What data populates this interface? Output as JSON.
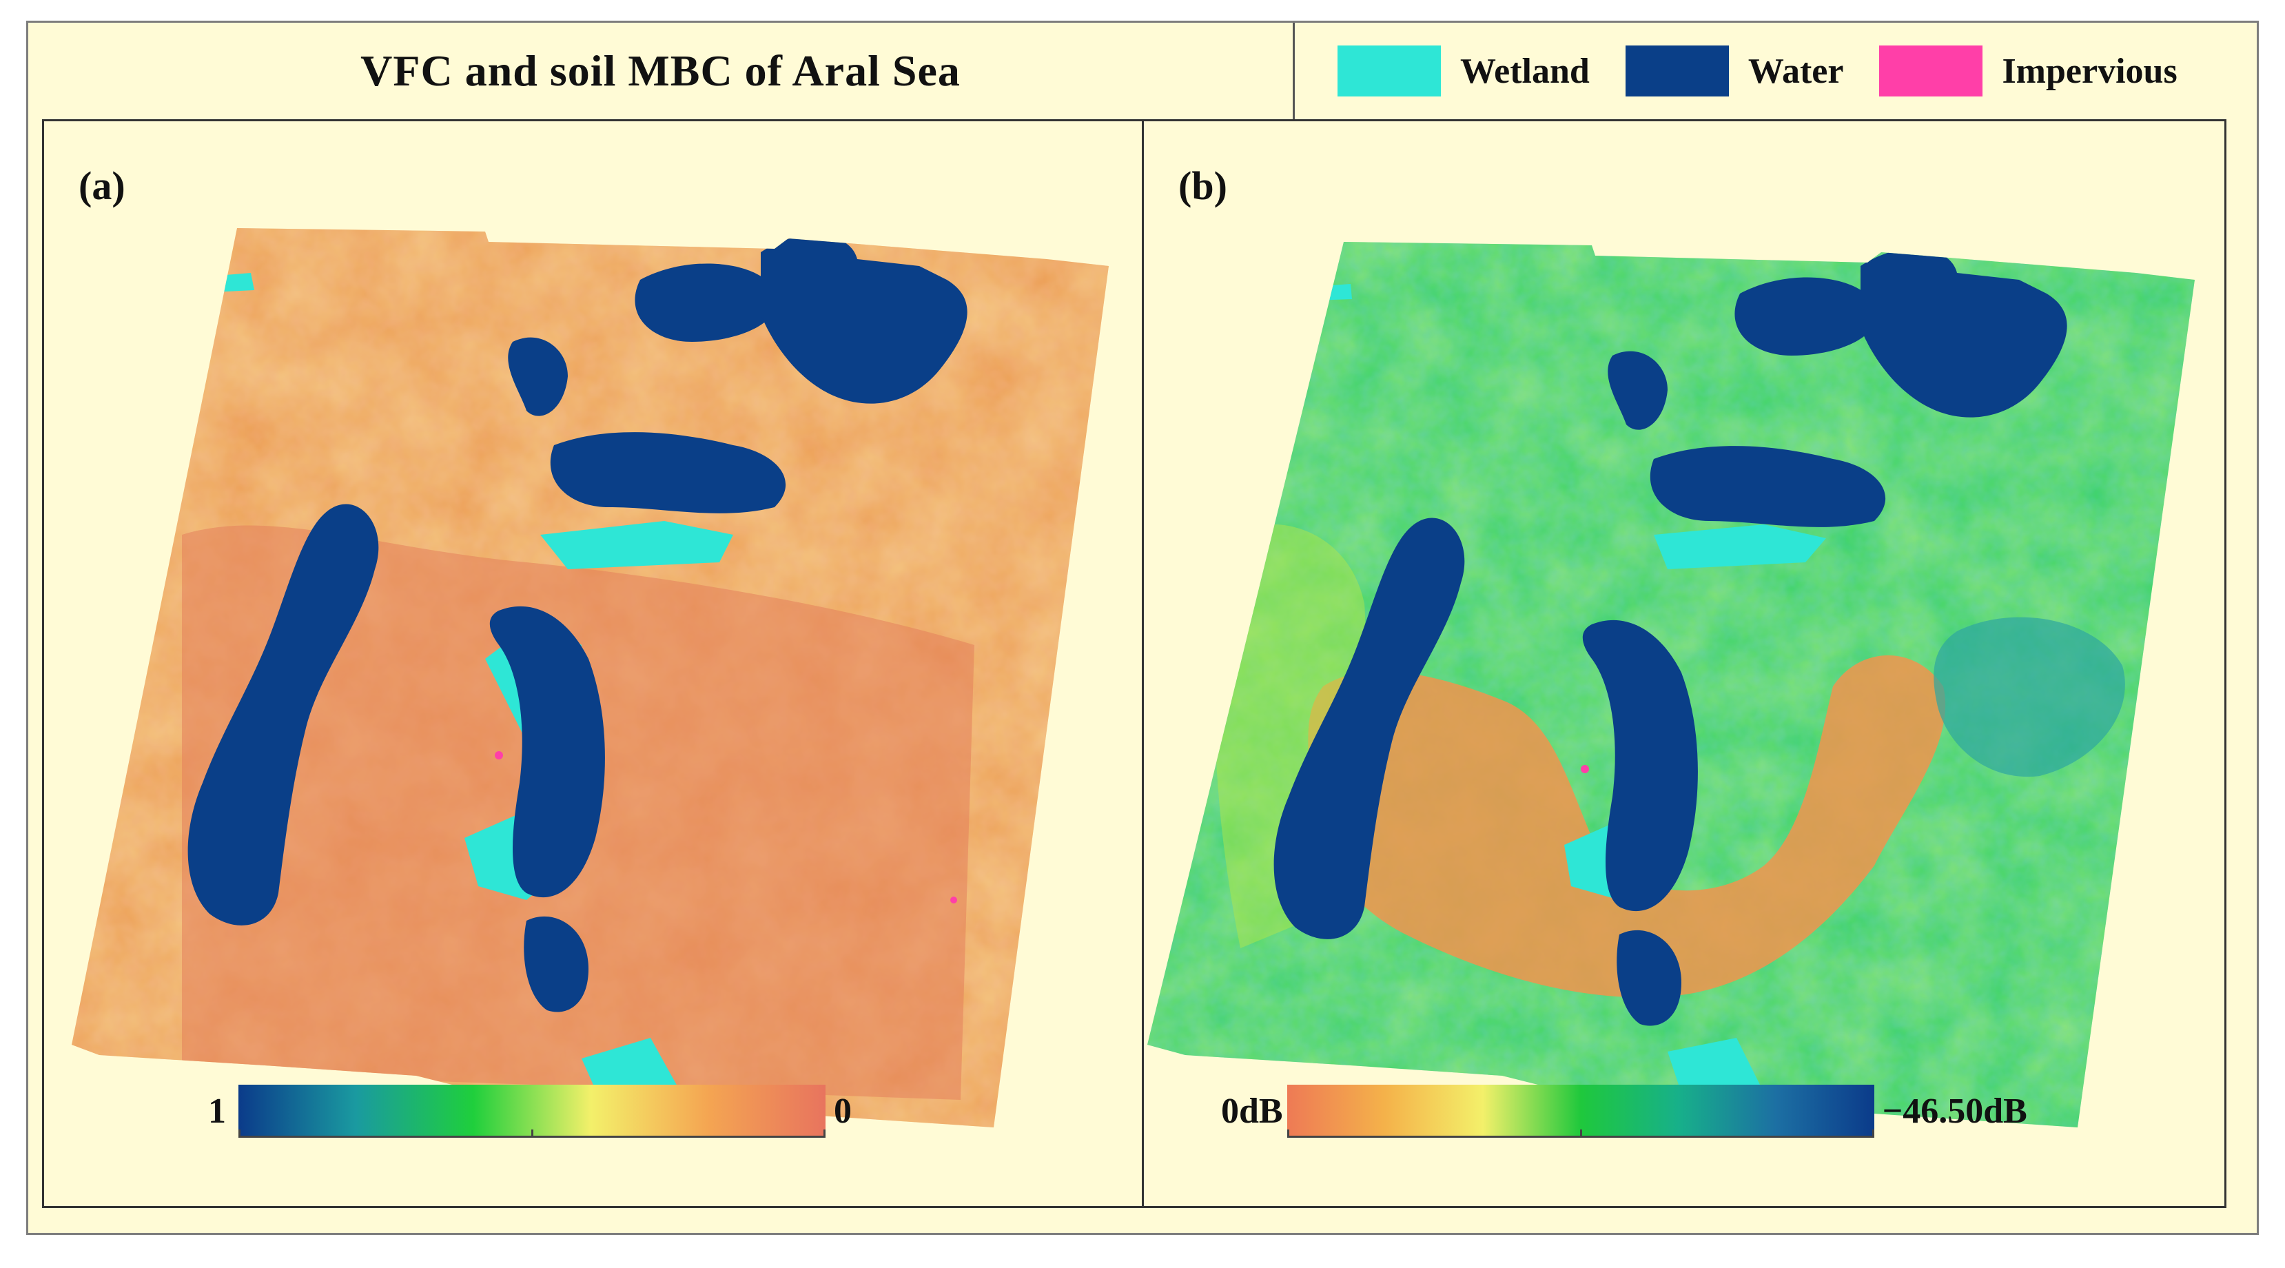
{
  "title": "VFC and soil MBC of Aral Sea",
  "legend": [
    {
      "label": "Wetland",
      "color": "#2ee6d6"
    },
    {
      "label": "Water",
      "color": "#0a3f88"
    },
    {
      "label": "Impervious",
      "color": "#ff3fa8"
    }
  ],
  "panels": [
    {
      "label": "(a)",
      "colorbar": {
        "min_label": "1",
        "max_label": "0",
        "colors": [
          "#0b3b8a",
          "#1a9aa0",
          "#1fcf3c",
          "#f3f06a",
          "#f4a552",
          "#e8745e"
        ]
      },
      "base_colors": {
        "land": "#eda25a",
        "land_light": "#f2c765",
        "land_dark": "#e4805b"
      }
    },
    {
      "label": "(b)",
      "colorbar": {
        "min_label": "0dB",
        "max_label": "−46.50dB",
        "colors": [
          "#ee7a55",
          "#f4b24a",
          "#f3f06a",
          "#1fc83c",
          "#17b08a",
          "#1c6fa3",
          "#0b3b8a"
        ]
      },
      "base_colors": {
        "land": "#3fd36a",
        "land_light": "#b2e64a",
        "land_dark": "#2ea6a0",
        "hot": "#f0944e"
      }
    }
  ]
}
